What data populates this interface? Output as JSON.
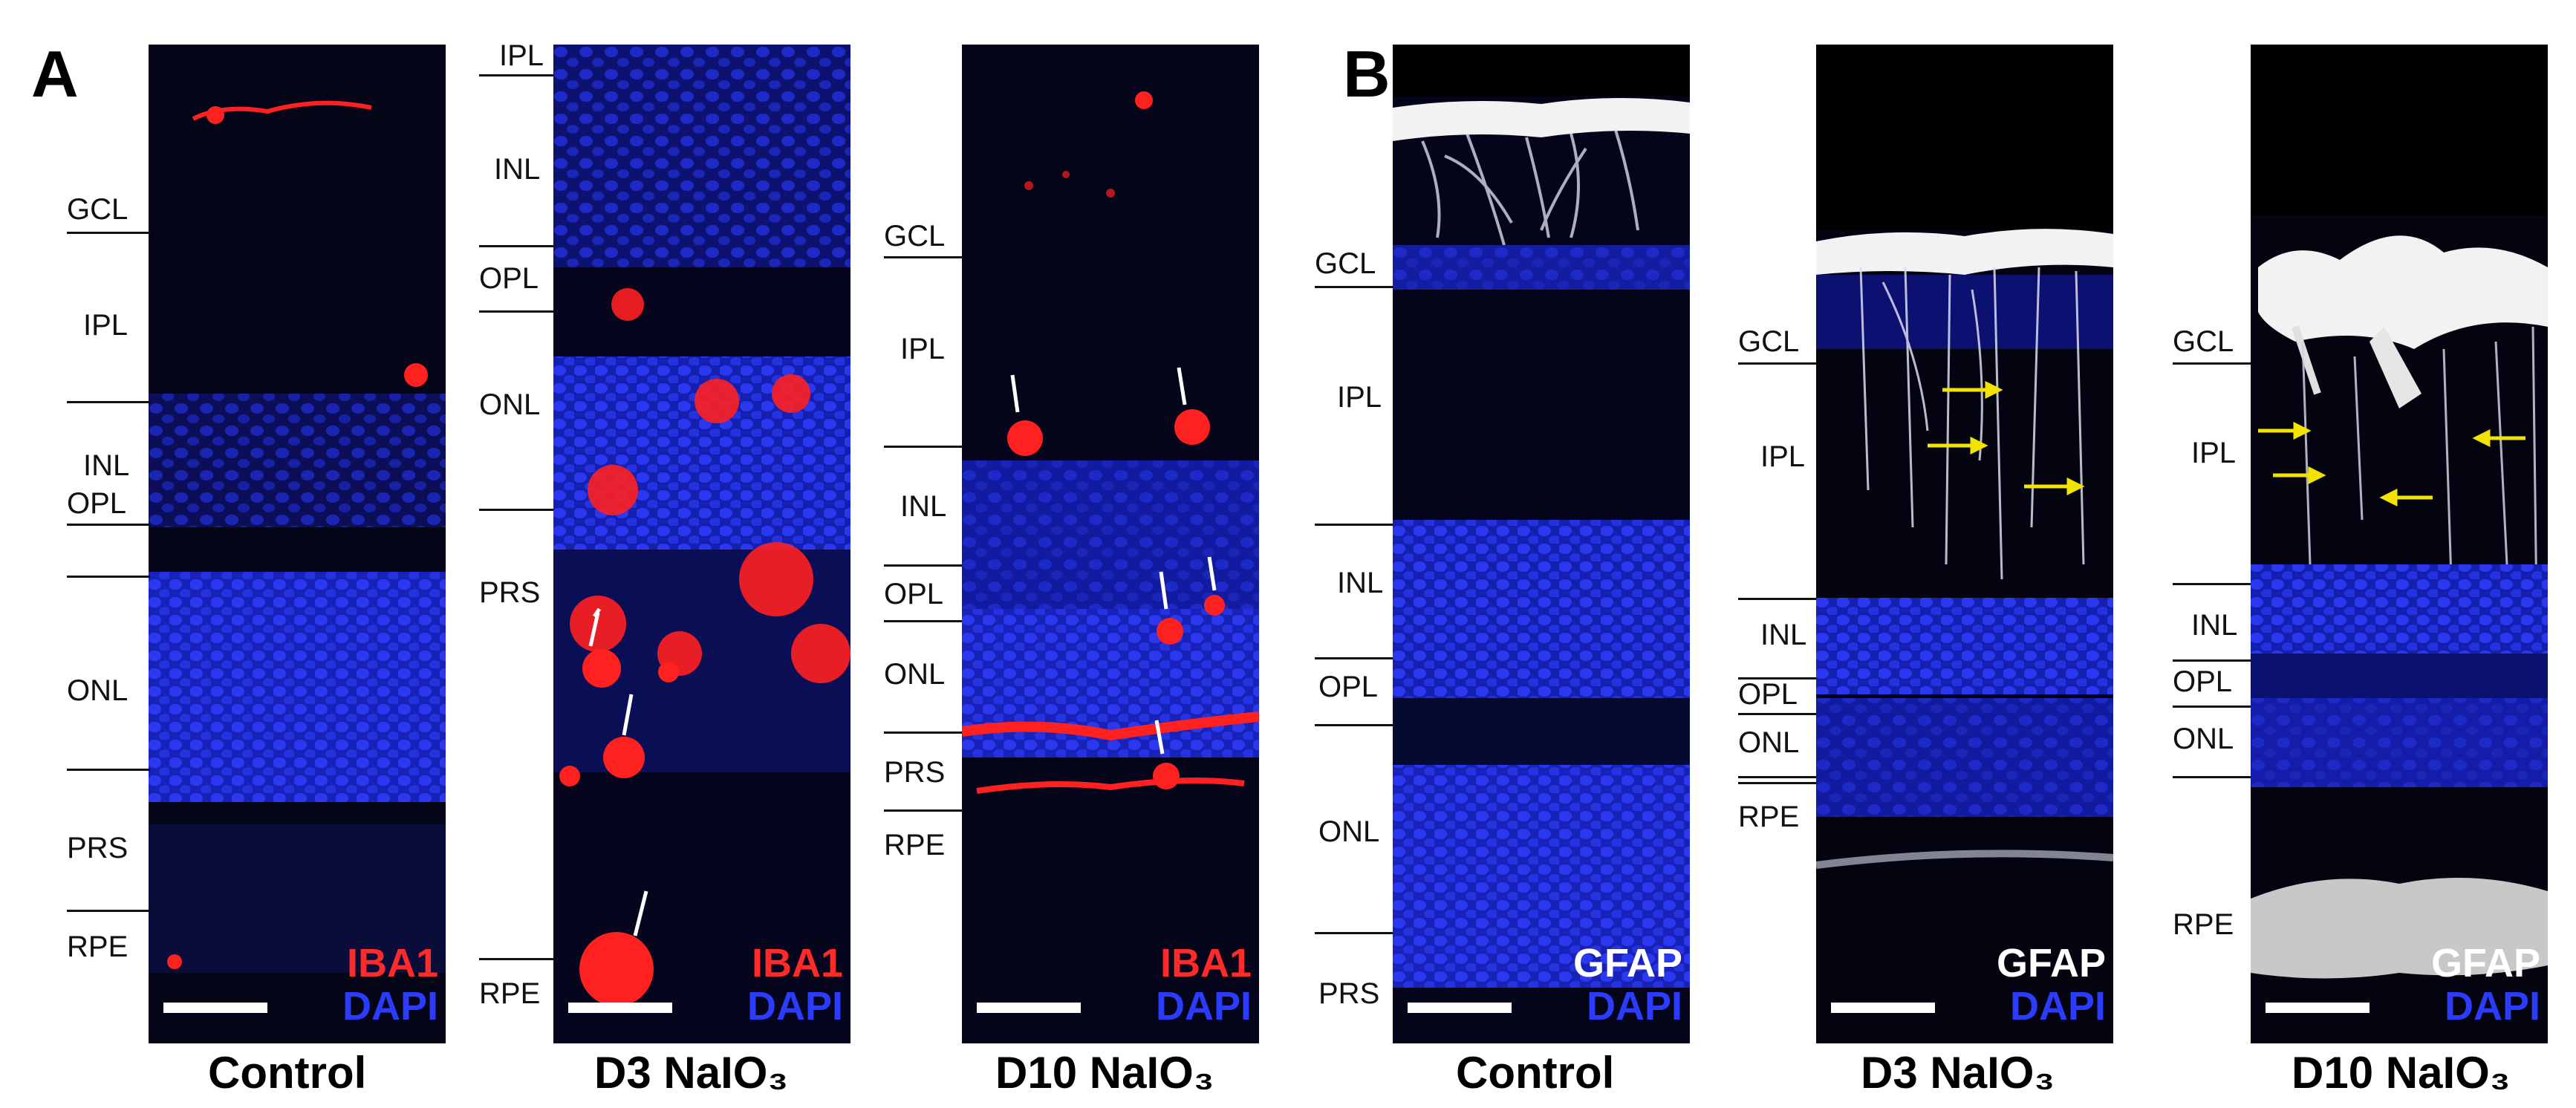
{
  "panels": [
    {
      "id": "A",
      "letter": "A"
    },
    {
      "id": "B",
      "letter": "B"
    }
  ],
  "strips": [
    {
      "panel": "A",
      "condition": "Control",
      "stains": [
        {
          "text": "IBA1",
          "color": "#ff2a2a"
        },
        {
          "text": "DAPI",
          "color": "#2b3cff"
        }
      ],
      "layers": [
        "GCL",
        "IPL",
        "INL",
        "OPL",
        "ONL",
        "PRS",
        "RPE"
      ]
    },
    {
      "panel": "A",
      "condition": "D3 NaIO₃",
      "stains": [
        {
          "text": "IBA1",
          "color": "#ff2a2a"
        },
        {
          "text": "DAPI",
          "color": "#2b3cff"
        }
      ],
      "layers": [
        "IPL",
        "INL",
        "OPL",
        "ONL",
        "PRS",
        "RPE"
      ]
    },
    {
      "panel": "A",
      "condition": "D10 NaIO₃",
      "stains": [
        {
          "text": "IBA1",
          "color": "#ff2a2a"
        },
        {
          "text": "DAPI",
          "color": "#2b3cff"
        }
      ],
      "layers": [
        "GCL",
        "IPL",
        "INL",
        "OPL",
        "ONL",
        "PRS",
        "RPE"
      ]
    },
    {
      "panel": "B",
      "condition": "Control",
      "stains": [
        {
          "text": "GFAP",
          "color": "#ffffff"
        },
        {
          "text": "DAPI",
          "color": "#2b3cff"
        }
      ],
      "layers": [
        "GCL",
        "IPL",
        "INL",
        "OPL",
        "ONL",
        "PRS"
      ]
    },
    {
      "panel": "B",
      "condition": "D3 NaIO₃",
      "stains": [
        {
          "text": "GFAP",
          "color": "#ffffff"
        },
        {
          "text": "DAPI",
          "color": "#2b3cff"
        }
      ],
      "layers": [
        "GCL",
        "IPL",
        "INL",
        "OPL",
        "ONL",
        "RPE"
      ]
    },
    {
      "panel": "B",
      "condition": "D10 NaIO₃",
      "stains": [
        {
          "text": "GFAP",
          "color": "#ffffff"
        },
        {
          "text": "DAPI",
          "color": "#2b3cff"
        }
      ],
      "layers": [
        "GCL",
        "IPL",
        "INL",
        "OPL",
        "ONL",
        "RPE"
      ]
    }
  ],
  "colors": {
    "background": "#000000",
    "dapi": "#1f2ad8",
    "iba1": "#ff2020",
    "gfap": "#f2f2f2",
    "arrow_white": "#ffffff",
    "arrow_yellow": "#f2e400"
  }
}
